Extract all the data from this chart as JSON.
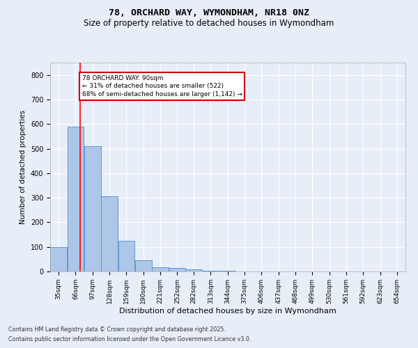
{
  "title1": "78, ORCHARD WAY, WYMONDHAM, NR18 0NZ",
  "title2": "Size of property relative to detached houses in Wymondham",
  "xlabel": "Distribution of detached houses by size in Wymondham",
  "ylabel": "Number of detached properties",
  "bin_labels": [
    "35sqm",
    "66sqm",
    "97sqm",
    "128sqm",
    "159sqm",
    "190sqm",
    "221sqm",
    "252sqm",
    "282sqm",
    "313sqm",
    "344sqm",
    "375sqm",
    "406sqm",
    "437sqm",
    "468sqm",
    "499sqm",
    "530sqm",
    "561sqm",
    "592sqm",
    "623sqm",
    "654sqm"
  ],
  "bin_edges": [
    35,
    66,
    97,
    128,
    159,
    190,
    221,
    252,
    282,
    313,
    344,
    375,
    406,
    437,
    468,
    499,
    530,
    561,
    592,
    623,
    654
  ],
  "bar_heights": [
    100,
    590,
    510,
    305,
    125,
    45,
    18,
    15,
    8,
    4,
    2,
    1,
    1,
    1,
    0,
    0,
    0,
    0,
    0,
    0
  ],
  "bar_color": "#aec6e8",
  "bar_edge_color": "#5b9bd5",
  "red_line_x": 90,
  "annotation_text": "78 ORCHARD WAY: 90sqm\n← 31% of detached houses are smaller (522)\n68% of semi-detached houses are larger (1,142) →",
  "annotation_box_color": "#ffffff",
  "annotation_box_edge_color": "#cc0000",
  "footnote1": "Contains HM Land Registry data © Crown copyright and database right 2025.",
  "footnote2": "Contains public sector information licensed under the Open Government Licence v3.0.",
  "ylim": [
    0,
    850
  ],
  "yticks": [
    0,
    100,
    200,
    300,
    400,
    500,
    600,
    700,
    800
  ],
  "bg_color": "#e8eef8",
  "grid_color": "#ffffff",
  "title1_fontsize": 9.5,
  "title2_fontsize": 8.5
}
